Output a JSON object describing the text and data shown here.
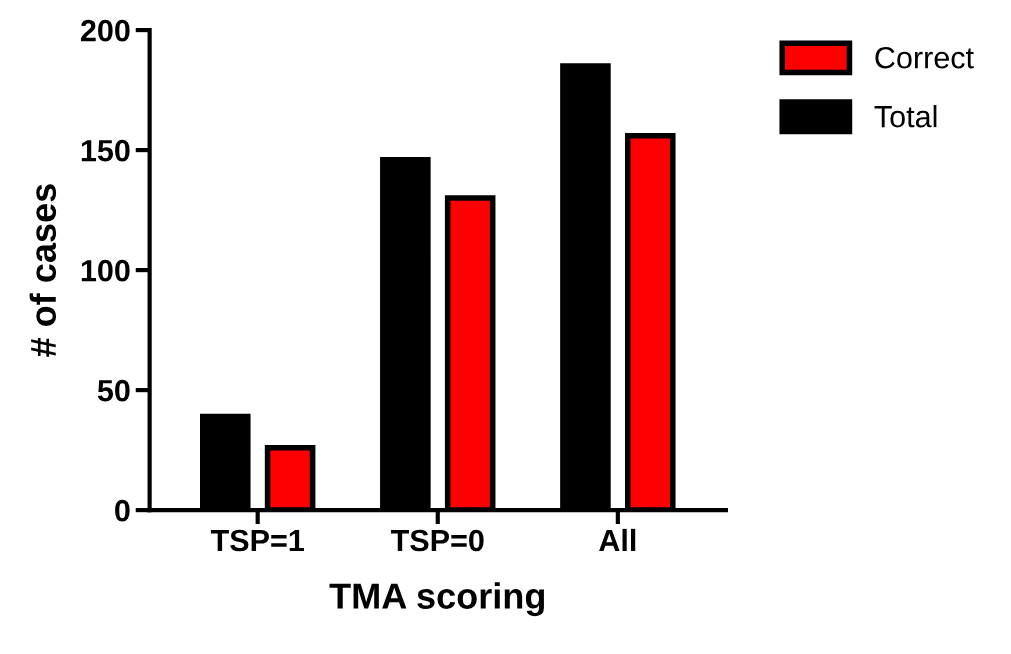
{
  "chart_data": {
    "type": "bar",
    "xlabel": "TMA scoring",
    "ylabel": "# of cases",
    "categories": [
      "TSP=1",
      "TSP=0",
      "All"
    ],
    "series": [
      {
        "name": "Total",
        "color": "#000000",
        "values": [
          39,
          146,
          185
        ]
      },
      {
        "name": "Correct",
        "color": "#ff0000",
        "values": [
          26,
          130,
          156
        ]
      }
    ],
    "ylim": [
      0,
      200
    ],
    "yticks": [
      0,
      50,
      100,
      150,
      200
    ],
    "grid": false,
    "legend": "top right"
  }
}
